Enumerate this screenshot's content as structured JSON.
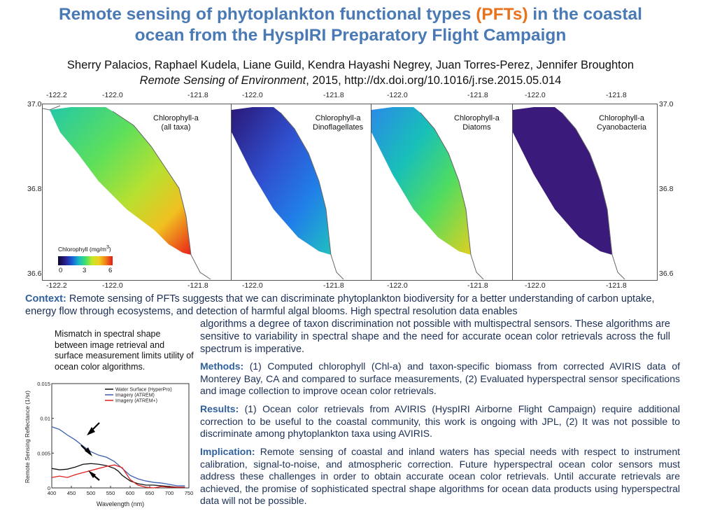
{
  "title": {
    "part1": "Remote sensing of phytoplankton functional types",
    "highlight": "(PFTs)",
    "part2": "in the coastal",
    "line2": "ocean from the HyspIRI Preparatory Flight Campaign"
  },
  "authors": "Sherry Palacios, Raphael Kudela, Liane Guild, Kendra Hayashi Negrey, Juan Torres-Perez, Jennifer Broughton",
  "citation": {
    "journal": "Remote Sensing of Environment",
    "rest": ", 2015, http://dx.doi.org/10.1016/j.rse.2015.05.014"
  },
  "maps": {
    "lon_ticks": [
      "-122.2",
      "-122.0",
      "-121.8"
    ],
    "lat_ticks": [
      "37.0",
      "36.8",
      "36.6"
    ],
    "panels": [
      {
        "label_line1": "Chlorophyll-a",
        "label_line2": "(all taxa)"
      },
      {
        "label_line1": "Chlorophyll-a",
        "label_line2": "Dinoflagellates"
      },
      {
        "label_line1": "Chlorophyll-a",
        "label_line2": "Diatoms"
      },
      {
        "label_line1": "Chlorophyll-a",
        "label_line2": "Cyanobacteria"
      }
    ],
    "colorbar": {
      "title": "Chlorophyll (mg/m",
      "title_sup": "3",
      "title_end": ")",
      "ticks": [
        "0",
        "3",
        "6"
      ]
    }
  },
  "context": {
    "label": "Context:",
    "text1": "Remote sensing of PFTs suggests that we can discriminate phytoplankton biodiversity for a better understanding of carbon uptake, energy flow through ecosystems, and detection of harmful algal blooms. High spectral resolution data enables",
    "text2": "algorithms a degree of taxon discrimination not possible with multispectral sensors. These algorithms are sensitive to variability in spectral shape and the need for accurate ocean color retrievals across the full spectrum is imperative."
  },
  "methods": {
    "label": "Methods:",
    "text": "(1) Computed chlorophyll (Chl-a) and taxon-specific biomass from corrected AVIRIS data of Monterey Bay, CA and compared to surface measurements, (2) Evaluated hyperspectral sensor specifications and image collection to improve ocean color retrievals."
  },
  "results": {
    "label": "Results:",
    "text": "(1) Ocean color retrievals from AVIRIS (HyspIRI Airborne Flight Campaign) require additional correction to be useful to the coastal community, this work is ongoing with JPL, (2) It was not possible to discriminate among phytoplankton taxa using AVIRIS."
  },
  "implication": {
    "label": "Implication:",
    "text": "Remote sensing of coastal and inland waters has special needs with respect to  instrument calibration, signal-to-noise, and atmospheric correction. Future hyperspectral ocean color sensors must address these challenges in order to obtain accurate ocean color retrievals. Until accurate retrievals are achieved, the promise of sophisticated spectral shape algorithms for ocean data products using hyperspectral data will not be possible."
  },
  "mismatch_caption": "Mismatch in spectral shape between image retrieval and surface measurement limits utility of ocean color algorithms.",
  "chart_data": {
    "type": "line",
    "title": "",
    "xlabel": "Wavelength (nm)",
    "ylabel": "Remote Sensing Reflectance (1/sr)",
    "xlim": [
      400,
      750
    ],
    "ylim": [
      0,
      0.015
    ],
    "x_ticks": [
      400,
      450,
      500,
      550,
      600,
      650,
      700,
      750
    ],
    "y_ticks": [
      0,
      0.005,
      0.01,
      0.015
    ],
    "y_tick_labels": [
      "0",
      "0.005",
      "0.01",
      "0.015"
    ],
    "legend_position": "top-right",
    "series": [
      {
        "name": "Water Surface (HyperPro)",
        "color": "#111111",
        "x": [
          400,
          420,
          440,
          460,
          480,
          500,
          520,
          540,
          560,
          570,
          580,
          600,
          620,
          640,
          660,
          680,
          700,
          720,
          740
        ],
        "y": [
          0.0028,
          0.0026,
          0.0027,
          0.003,
          0.0034,
          0.0035,
          0.0034,
          0.0032,
          0.0028,
          0.0024,
          0.0018,
          0.001,
          0.0006,
          0.0004,
          0.0004,
          0.0003,
          0.0002,
          0.0001,
          0.0001
        ]
      },
      {
        "name": "Imagery (ATREM)",
        "color": "#3a5fb0",
        "x": [
          400,
          420,
          440,
          460,
          480,
          500,
          520,
          540,
          560,
          580,
          600,
          620,
          640,
          660,
          680,
          700,
          720,
          740
        ],
        "y": [
          0.0088,
          0.0084,
          0.0076,
          0.0069,
          0.006,
          0.0052,
          0.0047,
          0.0044,
          0.0038,
          0.0028,
          0.0018,
          0.0013,
          0.001,
          0.0008,
          0.0007,
          0.0005,
          0.0003,
          0.0003
        ]
      },
      {
        "name": "Imagery (ATREM+)",
        "color": "#e02020",
        "x": [
          400,
          420,
          440,
          460,
          480,
          500,
          520,
          540,
          560,
          580,
          600,
          620,
          640,
          660,
          680,
          700,
          720,
          740
        ],
        "y": [
          0.0015,
          0.0017,
          0.0015,
          0.0019,
          0.0022,
          0.0025,
          0.0028,
          0.0031,
          0.0033,
          0.0029,
          0.0012,
          0.0004,
          0.0001,
          0.0,
          0.0002,
          0.0001,
          0.0001,
          0.0001
        ]
      }
    ]
  }
}
